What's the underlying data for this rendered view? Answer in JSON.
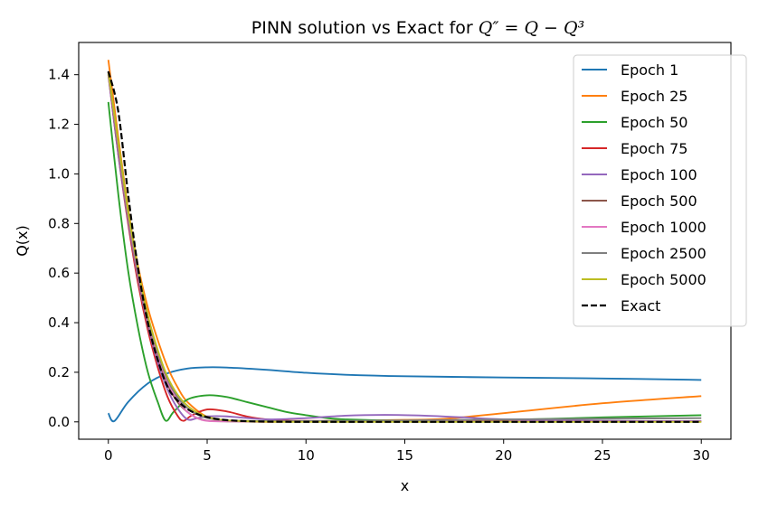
{
  "chart_data": {
    "type": "line",
    "title_prefix": "PINN solution vs Exact for ",
    "title_math": "Q″ = Q − Q³",
    "xlabel": "x",
    "ylabel": "Q(x)",
    "xlim": [
      -1.5,
      31.5
    ],
    "ylim": [
      -0.07,
      1.53
    ],
    "xticks": [
      0,
      5,
      10,
      15,
      20,
      25,
      30
    ],
    "xtick_labels": [
      "0",
      "5",
      "10",
      "15",
      "20",
      "25",
      "30"
    ],
    "yticks": [
      0.0,
      0.2,
      0.4,
      0.6,
      0.8,
      1.0,
      1.2,
      1.4
    ],
    "ytick_labels": [
      "0.0",
      "0.2",
      "0.4",
      "0.6",
      "0.8",
      "1.0",
      "1.2",
      "1.4"
    ],
    "legend_position": "top-right",
    "series": [
      {
        "name": "Epoch 1",
        "color": "#1f77b4",
        "dash": "solid",
        "x": [
          0,
          0.3,
          1,
          2,
          3,
          4,
          5,
          6,
          8,
          10,
          12,
          15,
          20,
          25,
          30
        ],
        "y": [
          0.035,
          0.003,
          0.08,
          0.155,
          0.196,
          0.215,
          0.22,
          0.219,
          0.21,
          0.198,
          0.19,
          0.184,
          0.179,
          0.175,
          0.169
        ]
      },
      {
        "name": "Epoch 25",
        "color": "#ff7f0e",
        "dash": "solid",
        "x": [
          0,
          0.5,
          1,
          1.5,
          2,
          2.5,
          3,
          3.5,
          4,
          5,
          6,
          8,
          10,
          12,
          15,
          17,
          20,
          25,
          30
        ],
        "y": [
          1.46,
          1.15,
          0.86,
          0.63,
          0.46,
          0.33,
          0.22,
          0.14,
          0.08,
          0.02,
          0.005,
          0.0,
          0.002,
          0.005,
          0.008,
          0.012,
          0.035,
          0.075,
          0.104
        ]
      },
      {
        "name": "Epoch 50",
        "color": "#2ca02c",
        "dash": "solid",
        "x": [
          0,
          0.5,
          1,
          1.5,
          2,
          2.5,
          2.9,
          3.3,
          4,
          5,
          6,
          7,
          8,
          9,
          10,
          11,
          12,
          15,
          20,
          25,
          30
        ],
        "y": [
          1.29,
          0.92,
          0.61,
          0.38,
          0.2,
          0.08,
          0.005,
          0.04,
          0.09,
          0.107,
          0.1,
          0.08,
          0.06,
          0.04,
          0.027,
          0.016,
          0.01,
          0.005,
          0.008,
          0.018,
          0.027
        ]
      },
      {
        "name": "Epoch 75",
        "color": "#d62728",
        "dash": "solid",
        "x": [
          0,
          0.5,
          1,
          1.5,
          2,
          2.5,
          3,
          3.5,
          3.8,
          4.2,
          5,
          6,
          7,
          8,
          9,
          10,
          12,
          15,
          20,
          30
        ],
        "y": [
          1.4,
          1.08,
          0.8,
          0.56,
          0.37,
          0.22,
          0.1,
          0.025,
          0.004,
          0.025,
          0.05,
          0.042,
          0.022,
          0.01,
          0.005,
          0.004,
          0.003,
          0.003,
          0.002,
          0.002
        ]
      },
      {
        "name": "Epoch 100",
        "color": "#9467bd",
        "dash": "solid",
        "x": [
          0,
          0.5,
          1,
          1.5,
          2,
          2.5,
          3,
          3.5,
          4,
          4.5,
          5,
          6,
          8,
          10,
          12,
          14,
          16,
          18,
          20,
          25,
          30
        ],
        "y": [
          1.4,
          1.08,
          0.81,
          0.58,
          0.39,
          0.24,
          0.13,
          0.055,
          0.01,
          0.015,
          0.022,
          0.022,
          0.01,
          0.015,
          0.025,
          0.028,
          0.025,
          0.018,
          0.01,
          0.004,
          0.003
        ]
      },
      {
        "name": "Epoch 500",
        "color": "#8c564b",
        "dash": "solid",
        "x": [
          0,
          0.5,
          1,
          1.5,
          2,
          2.5,
          3,
          3.5,
          4,
          4.5,
          5,
          6,
          8,
          10,
          15,
          20,
          30
        ],
        "y": [
          1.41,
          1.1,
          0.82,
          0.59,
          0.4,
          0.26,
          0.15,
          0.08,
          0.04,
          0.015,
          0.005,
          0.002,
          0.001,
          0.001,
          0.001,
          0.001,
          0.001
        ]
      },
      {
        "name": "Epoch 1000",
        "color": "#e377c2",
        "dash": "solid",
        "x": [
          0,
          0.5,
          1,
          1.5,
          2,
          2.5,
          3,
          3.5,
          4,
          4.5,
          5,
          6,
          8,
          10,
          15,
          20,
          30
        ],
        "y": [
          1.41,
          1.11,
          0.83,
          0.6,
          0.41,
          0.27,
          0.16,
          0.09,
          0.04,
          0.015,
          0.004,
          0.002,
          0.001,
          0.001,
          0.001,
          0.001,
          0.001
        ]
      },
      {
        "name": "Epoch 2500",
        "color": "#7f7f7f",
        "dash": "solid",
        "x": [
          0,
          0.5,
          1,
          1.5,
          2,
          2.5,
          3,
          3.5,
          4,
          4.5,
          5,
          6,
          8,
          10,
          15,
          20,
          30
        ],
        "y": [
          1.41,
          1.12,
          0.84,
          0.61,
          0.42,
          0.28,
          0.17,
          0.1,
          0.055,
          0.03,
          0.016,
          0.006,
          0.003,
          0.003,
          0.006,
          0.01,
          0.015
        ]
      },
      {
        "name": "Epoch 5000",
        "color": "#bcbd22",
        "dash": "solid",
        "x": [
          0,
          0.5,
          1,
          1.5,
          2,
          2.5,
          3,
          3.5,
          4,
          4.5,
          5,
          6,
          8,
          10,
          15,
          20,
          30
        ],
        "y": [
          1.41,
          1.13,
          0.85,
          0.62,
          0.43,
          0.29,
          0.18,
          0.11,
          0.065,
          0.037,
          0.02,
          0.006,
          0.001,
          0.0,
          0.0,
          0.0,
          0.0
        ]
      },
      {
        "name": "Exact",
        "color": "#000000",
        "dash": "dashed",
        "x": [
          0,
          0.5,
          1,
          1.5,
          2,
          2.5,
          3,
          3.5,
          4,
          4.5,
          5,
          5.5,
          6,
          7,
          8,
          9,
          10,
          12,
          15,
          20,
          25,
          30
        ],
        "y": [
          1.414,
          1.253,
          0.918,
          0.621,
          0.4,
          0.25,
          0.141,
          0.0858,
          0.0519,
          0.0315,
          0.0191,
          0.0116,
          0.007,
          0.0026,
          0.0009,
          0.0003,
          0.0001,
          0.0,
          0.0,
          0.0,
          0.0,
          0.0
        ]
      }
    ]
  }
}
